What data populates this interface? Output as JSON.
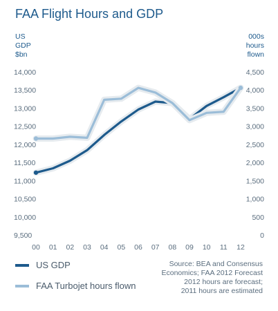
{
  "title": "FAA Flight Hours and GDP",
  "left_axis_header": [
    "US",
    "GDP",
    "$bn"
  ],
  "right_axis_header": [
    "000s",
    "hours",
    "flown"
  ],
  "legend": [
    {
      "label": "US GDP",
      "color": "#1d5a8c"
    },
    {
      "label": "FAA Turbojet hours flown",
      "color": "#9bbdd8"
    }
  ],
  "source_lines": [
    "Source: BEA and Consensus",
    "Economics; FAA 2012 Forecast",
    "2012 hours are forecast;",
    "2011 hours are estimated"
  ],
  "chart_data": {
    "type": "line",
    "categories": [
      "00",
      "01",
      "02",
      "03",
      "04",
      "05",
      "06",
      "07",
      "08",
      "09",
      "10",
      "11",
      "12"
    ],
    "left_ticks": [
      "14,000",
      "13,500",
      "13,000",
      "12,500",
      "12,000",
      "11,500",
      "11,000",
      "10,500",
      "10,000",
      "9,500"
    ],
    "right_ticks": [
      "4,500",
      "4,000",
      "3,500",
      "3,000",
      "2,500",
      "2,000",
      "1,500",
      "1,000",
      "500",
      "0"
    ],
    "ylim_left": [
      9500,
      14000
    ],
    "ylim_right": [
      0,
      4500
    ],
    "series": [
      {
        "name": "US GDP",
        "axis": "left",
        "color": "#1d5a8c",
        "values": [
          11220,
          11340,
          11550,
          11840,
          12260,
          12630,
          12960,
          13180,
          13140,
          12700,
          13060,
          13300,
          13560
        ]
      },
      {
        "name": "FAA Turbojet hours flown",
        "axis": "right",
        "color": "#9bbdd8",
        "values": [
          2660,
          2660,
          2710,
          2680,
          3730,
          3760,
          4060,
          3930,
          3640,
          3170,
          3370,
          3400,
          4060
        ]
      }
    ]
  }
}
